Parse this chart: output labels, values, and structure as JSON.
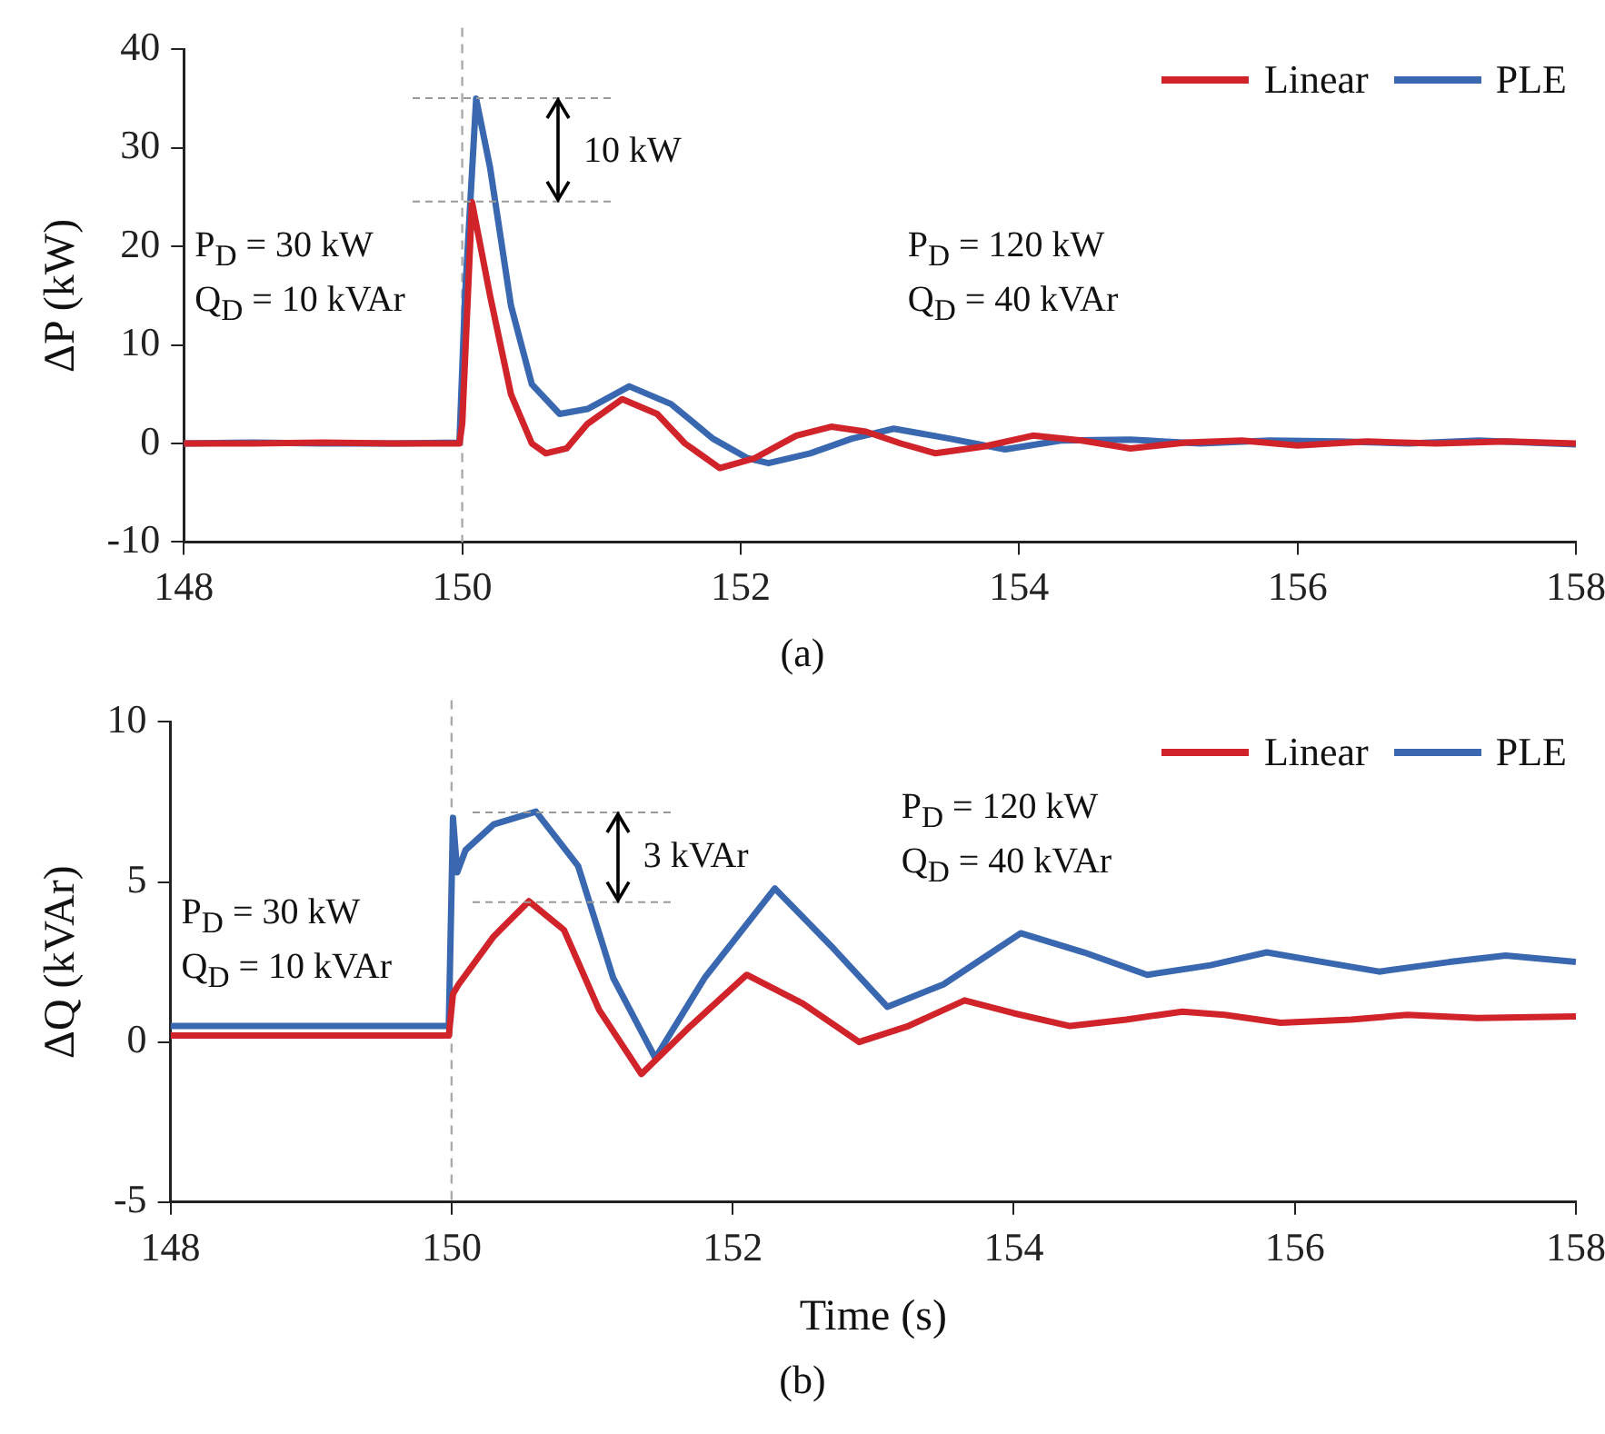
{
  "chart_data": [
    {
      "type": "line",
      "title": "(a)",
      "ylabel": "ΔP (kW)",
      "xlim": [
        148,
        158
      ],
      "xticks": [
        148,
        150,
        152,
        154,
        156,
        158
      ],
      "ylim": [
        -10,
        40
      ],
      "yticks": [
        -10,
        0,
        10,
        20,
        30,
        40
      ],
      "grid": false,
      "legend": "top right",
      "marker": "none",
      "line_style": "solid",
      "ref_lines": [
        {
          "axis": "x",
          "value": 150,
          "color": "#aaaaaa",
          "line_style": "dashed"
        }
      ],
      "annotations": [
        "10 kW",
        "P$_{D}$ = 30 kW",
        "Q$_{D}$ = 10 kVAr",
        "P$_{D}$ = 120 kW",
        "Q$_{D}$ = 40 kVAr"
      ],
      "series": [
        {
          "name": "Linear",
          "color": "#d0232a",
          "x": [
            148,
            148.5,
            149,
            149.5,
            149.98,
            150.0,
            150.07,
            150.2,
            150.35,
            150.5,
            150.6,
            150.75,
            150.9,
            151.15,
            151.4,
            151.6,
            151.85,
            152.1,
            152.4,
            152.65,
            152.9,
            153.15,
            153.4,
            153.75,
            154.1,
            154.45,
            154.8,
            155.2,
            155.6,
            156,
            156.5,
            157,
            157.5,
            158
          ],
          "values": [
            0,
            0,
            0.1,
            0,
            0,
            2,
            24.5,
            15,
            5,
            0,
            -1,
            -0.5,
            2,
            4.5,
            3,
            0,
            -2.5,
            -1.5,
            0.8,
            1.7,
            1.2,
            0,
            -1,
            -0.3,
            0.8,
            0.3,
            -0.5,
            0.1,
            0.3,
            -0.2,
            0.2,
            0,
            0.2,
            0
          ]
        },
        {
          "name": "PLE",
          "color": "#3a68b0",
          "x": [
            148,
            148.5,
            149,
            149.5,
            149.98,
            150.02,
            150.1,
            150.2,
            150.35,
            150.5,
            150.7,
            150.9,
            151.2,
            151.5,
            151.8,
            152.05,
            152.2,
            152.5,
            152.8,
            153.1,
            153.5,
            153.9,
            154.3,
            154.8,
            155.3,
            155.8,
            156.3,
            156.8,
            157.3,
            158
          ],
          "values": [
            0,
            0.1,
            0,
            0,
            0.1,
            15,
            35,
            28,
            14,
            6,
            3,
            3.5,
            5.8,
            4,
            0.5,
            -1.5,
            -2,
            -1,
            0.5,
            1.5,
            0.5,
            -0.6,
            0.3,
            0.4,
            0,
            0.3,
            0.2,
            0,
            0.3,
            -0.1
          ]
        }
      ]
    },
    {
      "type": "line",
      "title": "(b)",
      "xlabel": "Time (s)",
      "ylabel": "ΔQ (kVAr)",
      "xlim": [
        148,
        158
      ],
      "xticks": [
        148,
        150,
        152,
        154,
        156,
        158
      ],
      "ylim": [
        -5,
        10
      ],
      "yticks": [
        -5,
        0,
        5,
        10
      ],
      "grid": false,
      "legend": "top right",
      "marker": "none",
      "line_style": "solid",
      "ref_lines": [
        {
          "axis": "x",
          "value": 150,
          "color": "#aaaaaa",
          "line_style": "dashed"
        }
      ],
      "annotations": [
        "3 kVAr",
        "P$_{D}$ = 30 kW",
        "Q$_{D}$ = 10 kVAr",
        "P$_{D}$ = 120 kW",
        "Q$_{D}$ = 40 kVAr"
      ],
      "series": [
        {
          "name": "Linear",
          "color": "#d0232a",
          "x": [
            148,
            149,
            149.98,
            150.01,
            150.05,
            150.3,
            150.55,
            150.8,
            151.05,
            151.35,
            151.7,
            152.1,
            152.5,
            152.9,
            153.25,
            153.65,
            154,
            154.4,
            154.8,
            155.2,
            155.5,
            155.9,
            156.4,
            156.8,
            157.3,
            158
          ],
          "values": [
            0.2,
            0.2,
            0.2,
            1.5,
            1.8,
            3.3,
            4.4,
            3.5,
            1,
            -1,
            0.5,
            2.1,
            1.2,
            0,
            0.5,
            1.3,
            0.9,
            0.5,
            0.7,
            0.95,
            0.85,
            0.6,
            0.7,
            0.85,
            0.75,
            0.8
          ]
        },
        {
          "name": "PLE",
          "color": "#3a68b0",
          "x": [
            148,
            149,
            149.98,
            150.01,
            150.04,
            150.1,
            150.3,
            150.6,
            150.9,
            151.15,
            151.45,
            151.8,
            152.3,
            152.7,
            153.1,
            153.5,
            154.05,
            154.5,
            154.95,
            155.4,
            155.8,
            156.2,
            156.6,
            157.1,
            157.5,
            158
          ],
          "values": [
            0.5,
            0.5,
            0.5,
            7,
            5.3,
            6.0,
            6.8,
            7.2,
            5.5,
            2,
            -0.5,
            2,
            4.8,
            3,
            1.1,
            1.8,
            3.4,
            2.8,
            2.1,
            2.4,
            2.8,
            2.5,
            2.2,
            2.5,
            2.7,
            2.5
          ]
        }
      ]
    }
  ]
}
